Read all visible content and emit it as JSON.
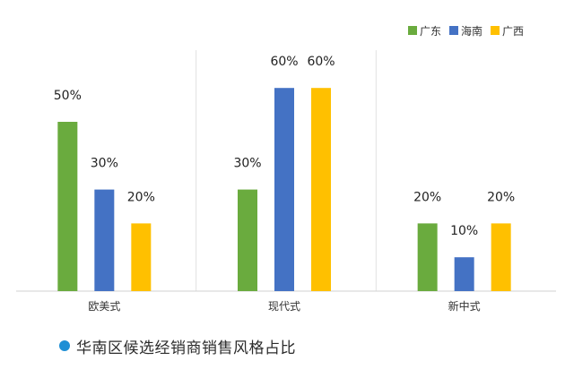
{
  "chart_data": {
    "type": "bar",
    "title": "",
    "xlabel": "",
    "ylabel": "",
    "categories": [
      "欧美式",
      "现代式",
      "新中式"
    ],
    "series": [
      {
        "name": "广东",
        "values": [
          50,
          30,
          20
        ],
        "color": "#6aab3e"
      },
      {
        "name": "海南",
        "values": [
          30,
          60,
          10
        ],
        "color": "#4472c4"
      },
      {
        "name": "广西",
        "values": [
          20,
          60,
          20
        ],
        "color": "#ffc000"
      }
    ],
    "value_labels": [
      [
        "50%",
        "30%",
        "20%"
      ],
      [
        "30%",
        "60%",
        "10%"
      ],
      [
        "20%",
        "60%",
        "20%"
      ]
    ],
    "ylim": [
      0,
      100
    ],
    "grid": false,
    "legend_position": "top-right",
    "category_separators": true
  },
  "footer": {
    "text": "华南区候选经销商销售风格占比",
    "dot_color": "#1e8fd5"
  }
}
